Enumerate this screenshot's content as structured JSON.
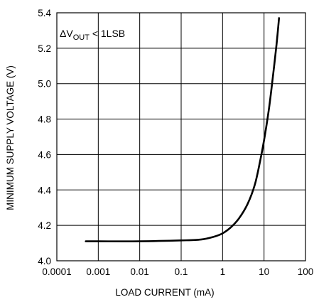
{
  "chart_data": {
    "type": "line",
    "title": "",
    "xlabel": "LOAD CURRENT (mA)",
    "ylabel": "MINIMUM SUPPLY VOLTAGE (V)",
    "x_scale": "log",
    "xlim": [
      0.0001,
      100
    ],
    "ylim": [
      4.0,
      5.4
    ],
    "x_ticks": [
      0.0001,
      0.001,
      0.01,
      0.1,
      1,
      10,
      100
    ],
    "x_tick_labels": [
      "0.0001",
      "0.001",
      "0.01",
      "0.1",
      "1",
      "10",
      "100"
    ],
    "y_ticks": [
      4.0,
      4.2,
      4.4,
      4.6,
      4.8,
      5.0,
      5.2,
      5.4
    ],
    "y_tick_labels": [
      "4.0",
      "4.2",
      "4.4",
      "4.6",
      "4.8",
      "5.0",
      "5.2",
      "5.4"
    ],
    "grid": true,
    "annotation": {
      "prefix": "ΔV",
      "subscript": "OUT",
      "suffix": " < 1LSB"
    },
    "series": [
      {
        "x": [
          0.0005,
          0.001,
          0.01,
          0.1,
          0.3,
          0.6,
          1,
          1.6,
          2.5,
          4,
          6,
          8,
          10,
          13,
          16,
          20,
          23
        ],
        "y": [
          4.11,
          4.11,
          4.11,
          4.115,
          4.12,
          4.135,
          4.155,
          4.19,
          4.24,
          4.32,
          4.43,
          4.56,
          4.68,
          4.85,
          5.02,
          5.22,
          5.37
        ]
      }
    ]
  }
}
